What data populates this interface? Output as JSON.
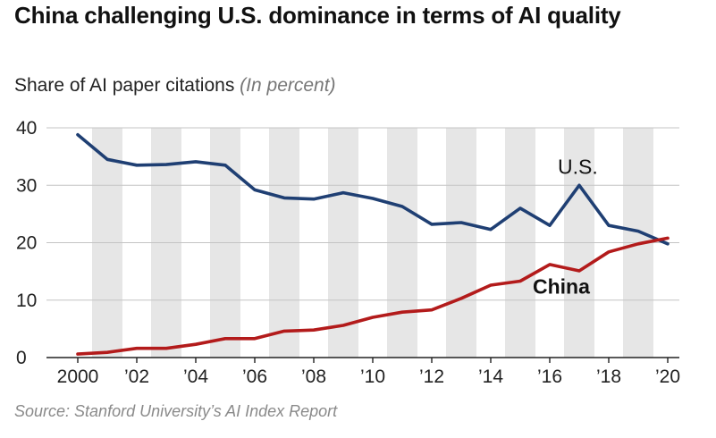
{
  "chart_data": {
    "type": "line",
    "title": "China challenging U.S. dominance in terms of AI quality",
    "subtitle": "Share of AI paper citations",
    "unit": "(In percent)",
    "source": "Source: Stanford University’s AI Index Report",
    "x": [
      2000,
      2001,
      2002,
      2003,
      2004,
      2005,
      2006,
      2007,
      2008,
      2009,
      2010,
      2011,
      2012,
      2013,
      2014,
      2015,
      2016,
      2017,
      2018,
      2019,
      2020
    ],
    "xticks": [
      2000,
      2002,
      2004,
      2006,
      2008,
      2010,
      2012,
      2014,
      2016,
      2018,
      2020
    ],
    "xtick_labels": [
      "2000",
      "’02",
      "’04",
      "’06",
      "’08",
      "’10",
      "’12",
      "’14",
      "’16",
      "’18",
      "’20"
    ],
    "yticks": [
      0,
      10,
      20,
      30,
      40
    ],
    "ylim": [
      0,
      40
    ],
    "xlim": [
      2000,
      2020
    ],
    "grid": "alternating vertical shaded bands",
    "series": [
      {
        "name": "U.S.",
        "label": "U.S.",
        "color": "#1f3f73",
        "values": [
          38.8,
          34.5,
          33.5,
          33.6,
          34.1,
          33.5,
          29.2,
          27.8,
          27.6,
          28.7,
          27.7,
          26.3,
          23.2,
          23.5,
          22.3,
          26.0,
          23.0,
          30.0,
          23.0,
          22.0,
          19.8
        ]
      },
      {
        "name": "China",
        "label": "China",
        "color": "#b31b1b",
        "values": [
          0.6,
          0.9,
          1.6,
          1.6,
          2.3,
          3.3,
          3.3,
          4.6,
          4.8,
          5.6,
          7.0,
          7.9,
          8.3,
          10.3,
          12.6,
          13.3,
          16.2,
          15.1,
          18.4,
          19.8,
          20.8
        ]
      }
    ]
  }
}
